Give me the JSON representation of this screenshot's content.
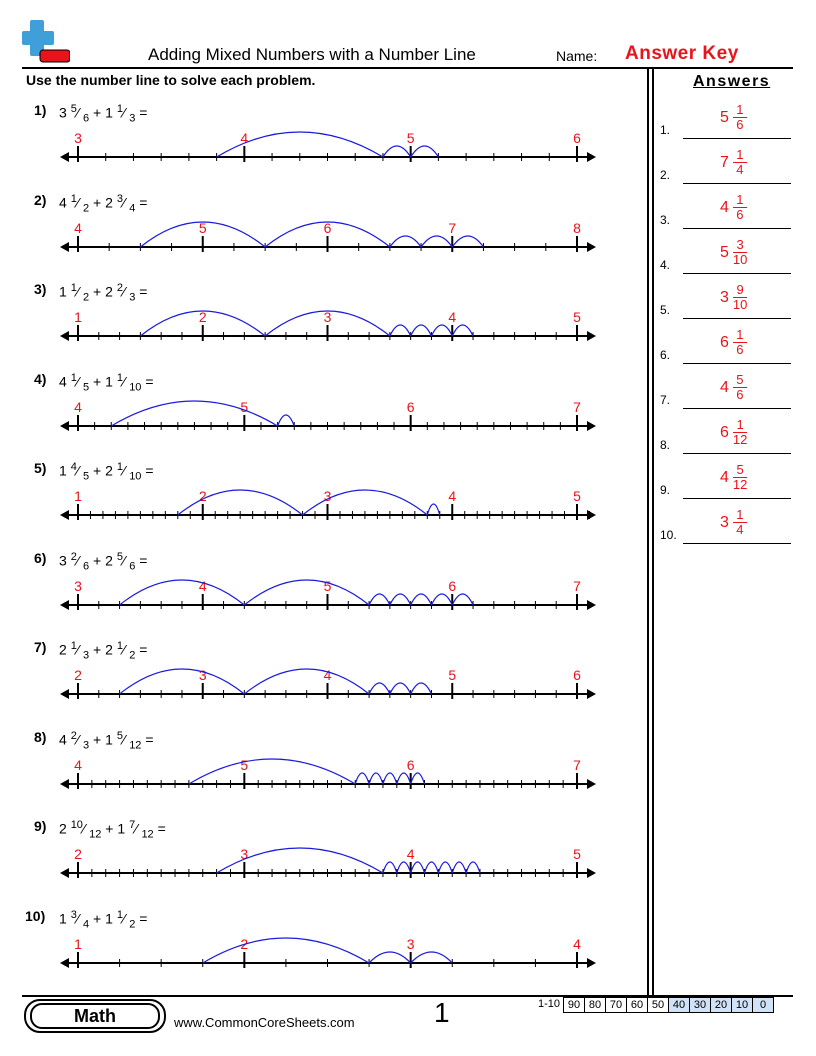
{
  "header": {
    "title": "Adding Mixed Numbers with a Number Line",
    "name_label": "Name:",
    "answer_key": "Answer Key",
    "instructions": "Use the number line to solve each problem."
  },
  "colors": {
    "accent_red": "#e8141c",
    "arc_blue": "#1a1adf",
    "logo_blue": "#3f9fd8"
  },
  "problems": [
    {
      "num": "1)",
      "w1": "3",
      "n1": "5",
      "d1": "6",
      "w2": "1",
      "n2": "1",
      "d2": "3",
      "start": 3,
      "end": 6,
      "den": 6,
      "arcs": [
        [
          3.8333,
          4.8333
        ],
        [
          4.8333,
          5.0
        ],
        [
          5.0,
          5.1667
        ]
      ],
      "ticks": [
        "3",
        "4",
        "5",
        "6"
      ]
    },
    {
      "num": "2)",
      "w1": "4",
      "n1": "1",
      "d1": "2",
      "w2": "2",
      "n2": "3",
      "d2": "4",
      "start": 4,
      "end": 8,
      "den": 4,
      "arcs": [
        [
          4.5,
          5.5
        ],
        [
          5.5,
          6.5
        ],
        [
          6.5,
          6.75
        ],
        [
          6.75,
          7.0
        ],
        [
          7.0,
          7.25
        ]
      ],
      "ticks": [
        "4",
        "5",
        "6",
        "7",
        "8"
      ]
    },
    {
      "num": "3)",
      "w1": "1",
      "n1": "1",
      "d1": "2",
      "w2": "2",
      "n2": "2",
      "d2": "3",
      "start": 1,
      "end": 5,
      "den": 6,
      "arcs": [
        [
          1.5,
          2.5
        ],
        [
          2.5,
          3.5
        ],
        [
          3.5,
          3.6667
        ],
        [
          3.6667,
          3.8333
        ],
        [
          3.8333,
          4.0
        ],
        [
          4.0,
          4.1667
        ]
      ],
      "ticks": [
        "1",
        "2",
        "3",
        "4",
        "5"
      ]
    },
    {
      "num": "4)",
      "w1": "4",
      "n1": "1",
      "d1": "5",
      "w2": "1",
      "n2": "1",
      "d2": "10",
      "start": 4,
      "end": 7,
      "den": 10,
      "arcs": [
        [
          4.2,
          5.2
        ],
        [
          5.2,
          5.3
        ]
      ],
      "ticks": [
        "4",
        "5",
        "6",
        "7"
      ]
    },
    {
      "num": "5)",
      "w1": "1",
      "n1": "4",
      "d1": "5",
      "w2": "2",
      "n2": "1",
      "d2": "10",
      "start": 1,
      "end": 5,
      "den": 10,
      "arcs": [
        [
          1.8,
          2.8
        ],
        [
          2.8,
          3.8
        ],
        [
          3.8,
          3.9
        ]
      ],
      "ticks": [
        "1",
        "2",
        "3",
        "4",
        "5"
      ]
    },
    {
      "num": "6)",
      "w1": "3",
      "n1": "2",
      "d1": "6",
      "w2": "2",
      "n2": "5",
      "d2": "6",
      "start": 3,
      "end": 7,
      "den": 6,
      "arcs": [
        [
          3.3333,
          4.3333
        ],
        [
          4.3333,
          5.3333
        ],
        [
          5.3333,
          5.5
        ],
        [
          5.5,
          5.6667
        ],
        [
          5.6667,
          5.8333
        ],
        [
          5.8333,
          6.0
        ],
        [
          6.0,
          6.1667
        ]
      ],
      "ticks": [
        "3",
        "4",
        "5",
        "6",
        "7"
      ]
    },
    {
      "num": "7)",
      "w1": "2",
      "n1": "1",
      "d1": "3",
      "w2": "2",
      "n2": "1",
      "d2": "2",
      "start": 2,
      "end": 6,
      "den": 6,
      "arcs": [
        [
          2.3333,
          3.3333
        ],
        [
          3.3333,
          4.3333
        ],
        [
          4.3333,
          4.5
        ],
        [
          4.5,
          4.6667
        ],
        [
          4.6667,
          4.8333
        ]
      ],
      "ticks": [
        "2",
        "3",
        "4",
        "5",
        "6"
      ]
    },
    {
      "num": "8)",
      "w1": "4",
      "n1": "2",
      "d1": "3",
      "w2": "1",
      "n2": "5",
      "d2": "12",
      "start": 4,
      "end": 7,
      "den": 12,
      "arcs": [
        [
          4.6667,
          5.6667
        ],
        [
          5.6667,
          5.75
        ],
        [
          5.75,
          5.8333
        ],
        [
          5.8333,
          5.9167
        ],
        [
          5.9167,
          6.0
        ],
        [
          6.0,
          6.0833
        ]
      ],
      "ticks": [
        "4",
        "5",
        "6",
        "7"
      ]
    },
    {
      "num": "9)",
      "w1": "2",
      "n1": "10",
      "d1": "12",
      "w2": "1",
      "n2": "7",
      "d2": "12",
      "start": 2,
      "end": 5,
      "den": 12,
      "arcs": [
        [
          2.8333,
          3.8333
        ],
        [
          3.8333,
          3.9167
        ],
        [
          3.9167,
          4.0
        ],
        [
          4.0,
          4.0833
        ],
        [
          4.0833,
          4.1667
        ],
        [
          4.1667,
          4.25
        ],
        [
          4.25,
          4.3333
        ],
        [
          4.3333,
          4.4167
        ]
      ],
      "ticks": [
        "2",
        "3",
        "4",
        "5"
      ]
    },
    {
      "num": "10)",
      "w1": "1",
      "n1": "3",
      "d1": "4",
      "w2": "1",
      "n2": "1",
      "d2": "2",
      "start": 1,
      "end": 4,
      "den": 4,
      "arcs": [
        [
          1.75,
          2.75
        ],
        [
          2.75,
          3.0
        ],
        [
          3.0,
          3.25
        ]
      ],
      "ticks": [
        "1",
        "2",
        "3",
        "4"
      ]
    }
  ],
  "answers_title": "Answers",
  "answers": [
    {
      "label": "1.",
      "whole": "5",
      "num": "1",
      "den": "6"
    },
    {
      "label": "2.",
      "whole": "7",
      "num": "1",
      "den": "4"
    },
    {
      "label": "3.",
      "whole": "4",
      "num": "1",
      "den": "6"
    },
    {
      "label": "4.",
      "whole": "5",
      "num": "3",
      "den": "10"
    },
    {
      "label": "5.",
      "whole": "3",
      "num": "9",
      "den": "10"
    },
    {
      "label": "6.",
      "whole": "6",
      "num": "1",
      "den": "6"
    },
    {
      "label": "7.",
      "whole": "4",
      "num": "5",
      "den": "6"
    },
    {
      "label": "8.",
      "whole": "6",
      "num": "1",
      "den": "12"
    },
    {
      "label": "9.",
      "whole": "4",
      "num": "5",
      "den": "12"
    },
    {
      "label": "10.",
      "whole": "3",
      "num": "1",
      "den": "4"
    }
  ],
  "footer": {
    "subject": "Math",
    "url": "www.CommonCoreSheets.com",
    "page": "1",
    "score_label": "1-10",
    "scores": [
      "90",
      "80",
      "70",
      "60",
      "50",
      "40",
      "30",
      "20",
      "10",
      "0"
    ]
  }
}
